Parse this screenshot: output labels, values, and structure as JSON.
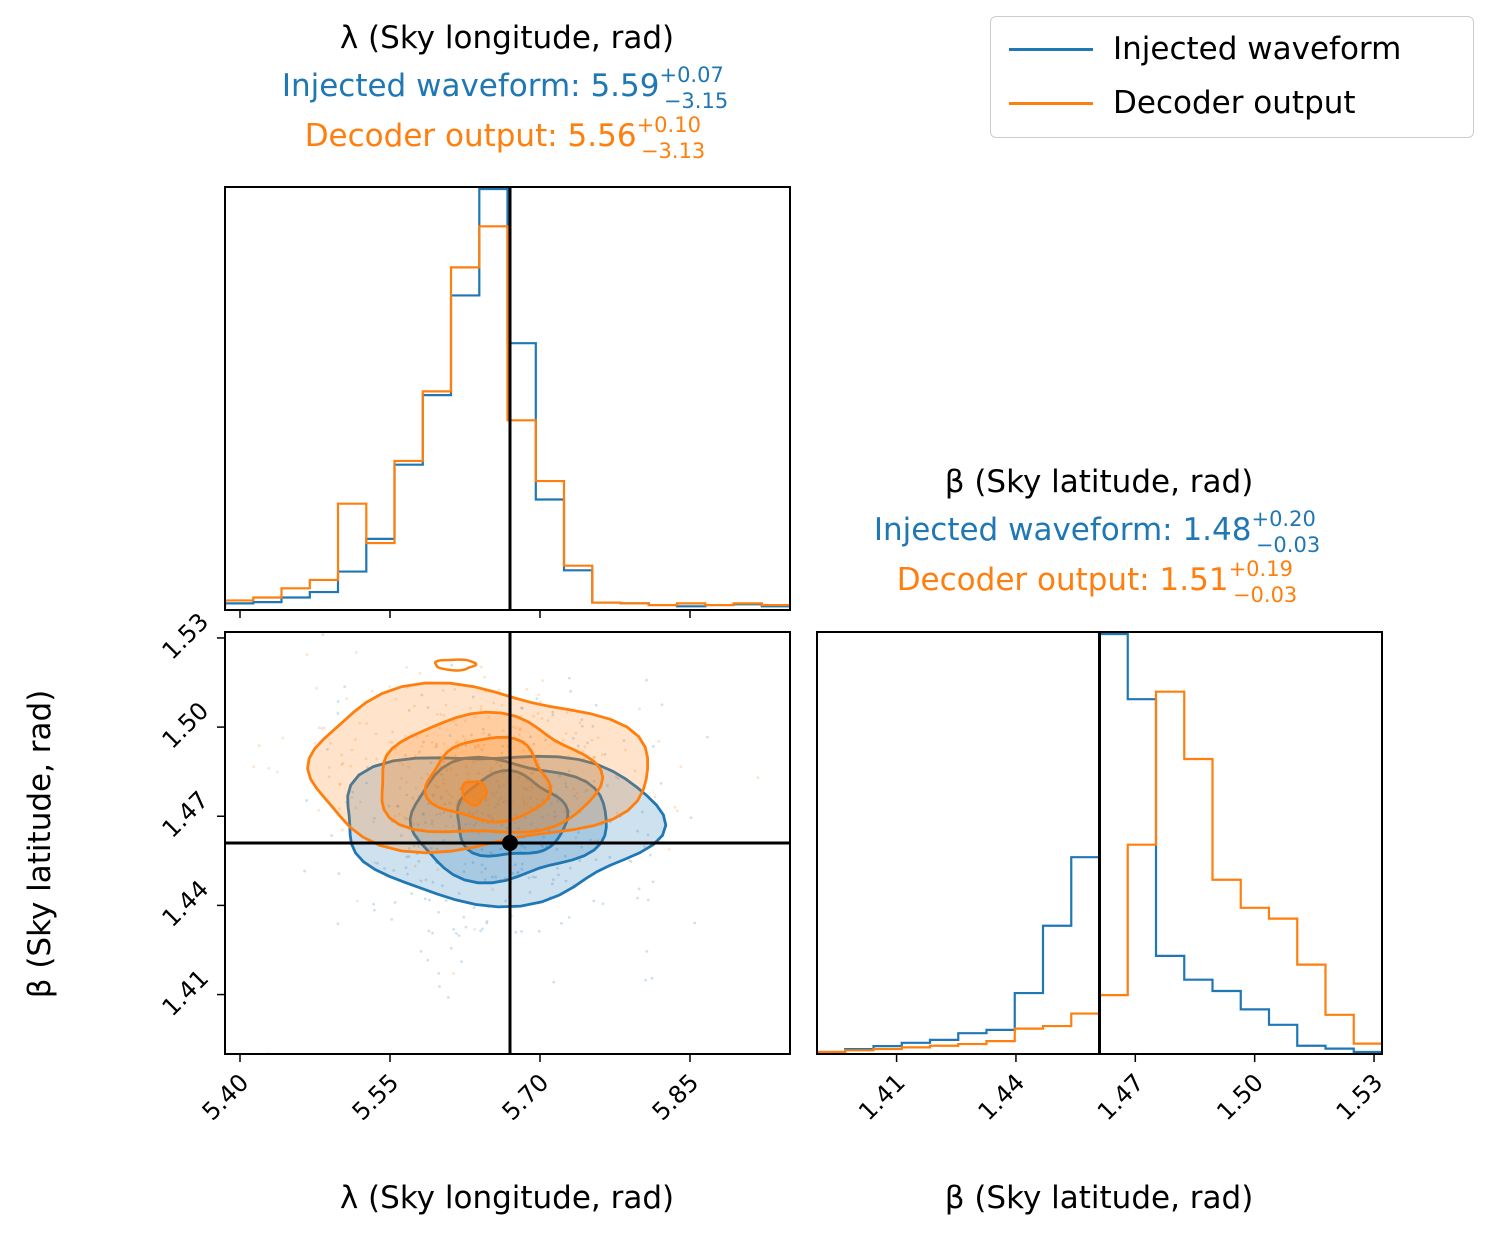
{
  "colors": {
    "injected": "#1f77b4",
    "decoder": "#ff7f0e",
    "truth": "#000000"
  },
  "legend": {
    "items": [
      {
        "label": "Injected waveform",
        "color": "#1f77b4"
      },
      {
        "label": "Decoder output",
        "color": "#ff7f0e"
      }
    ]
  },
  "titles": {
    "lambda": {
      "param": "λ (Sky longitude, rad)",
      "injected_prefix": "Injected waveform: ",
      "injected_value": "5.59",
      "injected_plus": "+0.07",
      "injected_minus": "−3.15",
      "decoder_prefix": "Decoder output: ",
      "decoder_value": "5.56",
      "decoder_plus": "+0.10",
      "decoder_minus": "−3.13"
    },
    "beta": {
      "param": "β (Sky latitude, rad)",
      "injected_prefix": "Injected waveform: ",
      "injected_value": "1.48",
      "injected_plus": "+0.20",
      "injected_minus": "−0.03",
      "decoder_prefix": "Decoder output: ",
      "decoder_value": "1.51",
      "decoder_plus": "+0.19",
      "decoder_minus": "−0.03"
    }
  },
  "axes": {
    "lambda_label": "λ (Sky longitude, rad)",
    "beta_label": "β (Sky latitude, rad)",
    "lambda_ticks": [
      "5.40",
      "5.55",
      "5.70",
      "5.85"
    ],
    "beta_ticks": [
      "1.41",
      "1.44",
      "1.47",
      "1.50",
      "1.53"
    ]
  },
  "chart_data": {
    "type": "corner",
    "truth": {
      "lambda": 5.67,
      "beta": 1.461
    },
    "lambda_range": [
      5.385,
      5.95
    ],
    "beta_range": [
      1.39,
      1.532
    ],
    "lambda_hist": {
      "edges": [
        5.385,
        5.4133,
        5.4415,
        5.4698,
        5.498,
        5.5263,
        5.5545,
        5.5828,
        5.611,
        5.6393,
        5.6675,
        5.6958,
        5.724,
        5.7523,
        5.7805,
        5.8088,
        5.837,
        5.8653,
        5.8935,
        5.9218,
        5.95
      ],
      "injected": [
        0.011,
        0.014,
        0.025,
        0.038,
        0.087,
        0.165,
        0.342,
        0.508,
        0.746,
        1.0,
        0.632,
        0.259,
        0.09,
        0.013,
        0.011,
        0.007,
        0.004,
        0.007,
        0.009,
        0.004
      ],
      "decoder": [
        0.018,
        0.025,
        0.047,
        0.067,
        0.249,
        0.155,
        0.351,
        0.517,
        0.813,
        0.911,
        0.448,
        0.303,
        0.101,
        0.013,
        0.011,
        0.007,
        0.011,
        0.007,
        0.011,
        0.007
      ]
    },
    "beta_hist": {
      "edges": [
        1.39,
        1.3971,
        1.4042,
        1.4113,
        1.4184,
        1.4255,
        1.4326,
        1.4397,
        1.4468,
        1.4539,
        1.461,
        1.4681,
        1.4752,
        1.4823,
        1.4894,
        1.4965,
        1.5036,
        1.5107,
        1.5178,
        1.5249,
        1.532
      ],
      "injected": [
        0.0,
        0.007,
        0.014,
        0.022,
        0.029,
        0.045,
        0.053,
        0.141,
        0.302,
        0.466,
        1.0,
        0.844,
        0.23,
        0.173,
        0.146,
        0.102,
        0.065,
        0.015,
        0.008,
        0.0
      ],
      "decoder": [
        0.0,
        0.004,
        0.007,
        0.011,
        0.015,
        0.019,
        0.026,
        0.056,
        0.062,
        0.092,
        0.136,
        0.496,
        0.862,
        0.701,
        0.412,
        0.345,
        0.319,
        0.209,
        0.089,
        0.02
      ]
    },
    "contours": {
      "injected": {
        "center": [
          5.658,
          1.467
        ],
        "levels": [
          {
            "rx": 0.158,
            "ry": 0.025,
            "shift": [
              0.0,
              0.0
            ]
          },
          {
            "rx": 0.098,
            "ry": 0.02,
            "shift": [
              0.008,
              0.002
            ]
          },
          {
            "rx": 0.055,
            "ry": 0.014,
            "shift": [
              0.012,
              0.003
            ]
          }
        ]
      },
      "decoder": {
        "center": [
          5.634,
          1.486
        ],
        "levels": [
          {
            "rx": 0.17,
            "ry": 0.027,
            "shift": [
              0.0,
              0.0
            ]
          },
          {
            "rx": 0.11,
            "ry": 0.02,
            "shift": [
              0.012,
              -0.003
            ]
          },
          {
            "rx": 0.06,
            "ry": 0.014,
            "shift": [
              0.015,
              -0.004
            ]
          }
        ],
        "peak": [
          5.634,
          1.478
        ]
      }
    }
  }
}
